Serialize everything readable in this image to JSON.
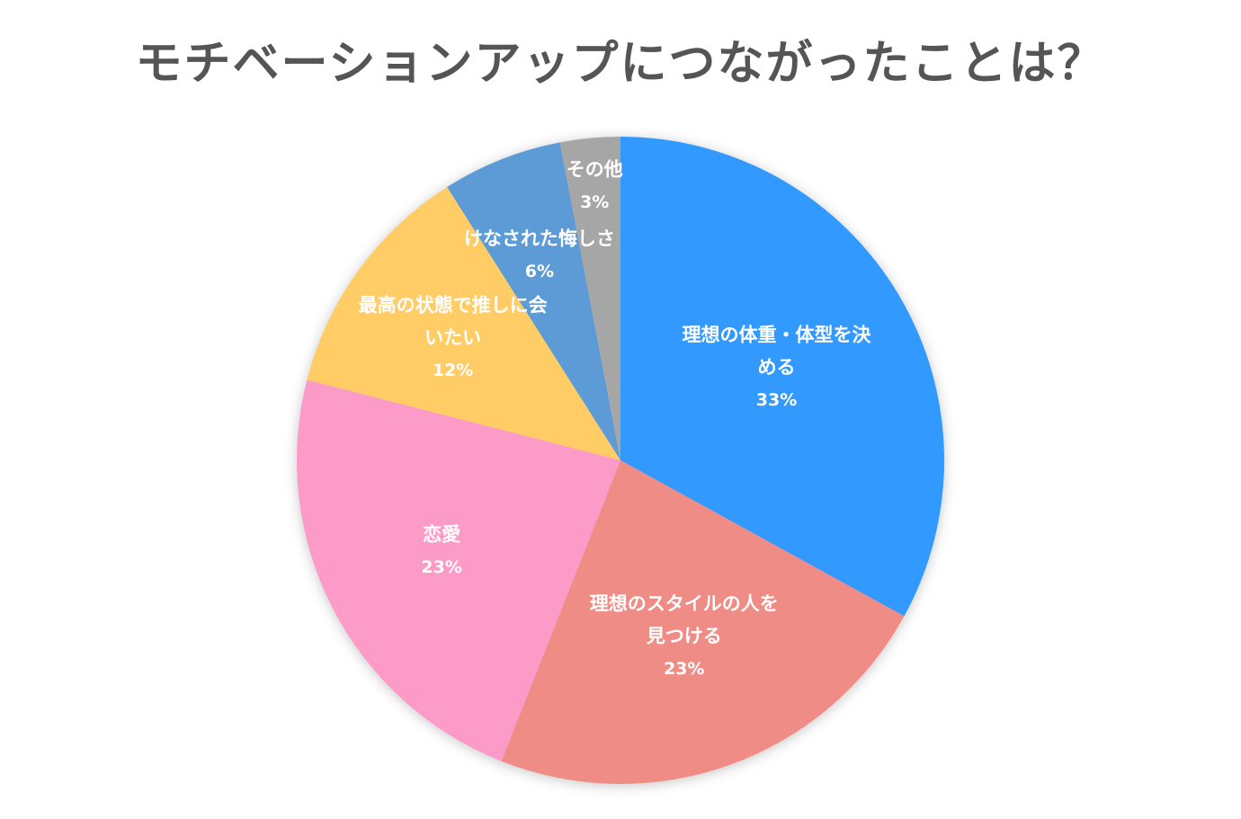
{
  "chart_data": {
    "type": "pie",
    "title": "モチベーションアップにつながったことは？",
    "slices": [
      {
        "label_lines": [
          "理想の体重・体型を決",
          "める"
        ],
        "percent_label": "33%",
        "value": 33,
        "color": "#3399ff"
      },
      {
        "label_lines": [
          "理想のスタイルの人を",
          "見つける"
        ],
        "percent_label": "23%",
        "value": 23,
        "color": "#ef8c86"
      },
      {
        "label_lines": [
          "恋愛"
        ],
        "percent_label": "23%",
        "value": 23,
        "color": "#fc9ac8"
      },
      {
        "label_lines": [
          "最高の状態で推しに会",
          "いたい"
        ],
        "percent_label": "12%",
        "value": 12,
        "color": "#ffcc66"
      },
      {
        "label_lines": [
          "けなされた悔しさ"
        ],
        "percent_label": "6%",
        "value": 6,
        "color": "#5b9bd5"
      },
      {
        "label_lines": [
          "その他"
        ],
        "percent_label": "3%",
        "value": 3,
        "color": "#a6a6a6"
      }
    ]
  }
}
